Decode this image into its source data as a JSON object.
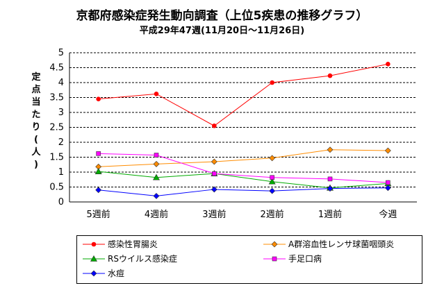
{
  "chart_data": {
    "type": "line",
    "title": "京都府感染症発生動向調査（上位5疾患の推移グラフ）",
    "subtitle": "平成29年47週(11月20日～11月26日)",
    "ylabel": "定点当たり(人)",
    "xlabel": "",
    "categories": [
      "5週前",
      "4週前",
      "3週前",
      "2週前",
      "1週前",
      "今週"
    ],
    "ylim": [
      0,
      5
    ],
    "yticks": [
      "0",
      "0.5",
      "1",
      "1.5",
      "2",
      "2.5",
      "3",
      "3.5",
      "4",
      "4.5",
      "5"
    ],
    "grid": "horizontal dashed",
    "legend_position": "bottom",
    "series": [
      {
        "name": "感染性胃腸炎",
        "color": "#ff0000",
        "marker": "circle",
        "values": [
          3.45,
          3.62,
          2.55,
          4.0,
          4.23,
          4.62
        ]
      },
      {
        "name": "A群溶血性レンサ球菌咽頭炎",
        "color": "#ff8c00",
        "marker": "diamond",
        "values": [
          1.18,
          1.27,
          1.35,
          1.47,
          1.75,
          1.72
        ]
      },
      {
        "name": "RSウイルス感染症",
        "color": "#00aa00",
        "marker": "triangle",
        "values": [
          1.02,
          0.82,
          0.95,
          0.68,
          0.47,
          0.62
        ]
      },
      {
        "name": "手足口病",
        "color": "#ff00ff",
        "marker": "square",
        "values": [
          1.62,
          1.57,
          0.95,
          0.82,
          0.77,
          0.65
        ]
      },
      {
        "name": "水痘",
        "color": "#0000ff",
        "marker": "diamond",
        "values": [
          0.4,
          0.2,
          0.42,
          0.37,
          0.45,
          0.47
        ]
      }
    ]
  }
}
